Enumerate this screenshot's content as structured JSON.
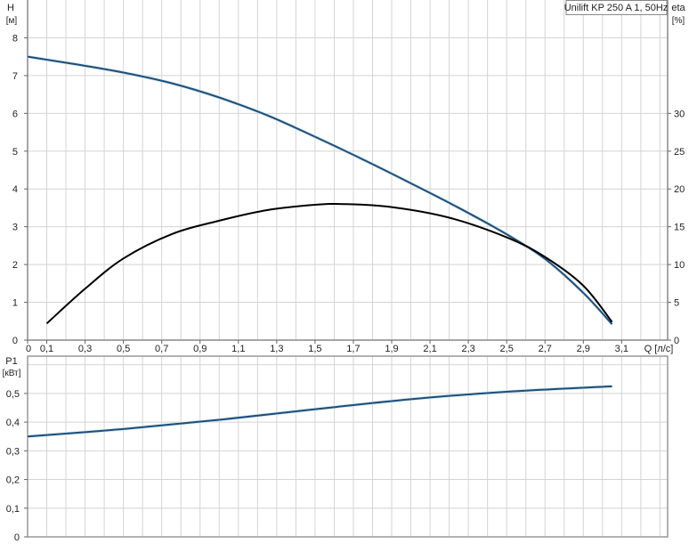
{
  "chart_data": [
    {
      "type": "line",
      "title": "Unilift KP 250 A 1, 50Hz",
      "xlabel": "Q [л/с]",
      "ylabel": "H",
      "ylabel_unit": "[м]",
      "y2label": "eta",
      "y2label_unit": "[%]",
      "xlim": [
        0,
        3.34
      ],
      "ylim": [
        0,
        9
      ],
      "y2lim": [
        0,
        45
      ],
      "x_ticks": [
        "0",
        "0,1",
        "0,3",
        "0,5",
        "0,7",
        "0,9",
        "1,1",
        "1,3",
        "1,5",
        "1,7",
        "1,9",
        "2,1",
        "2,3",
        "2,5",
        "2,7",
        "2,9",
        "3,1"
      ],
      "y_ticks": [
        "0",
        "1",
        "2",
        "3",
        "4",
        "5",
        "6",
        "7",
        "8"
      ],
      "y2_ticks": [
        "0",
        "5",
        "10",
        "15",
        "20",
        "25",
        "30"
      ],
      "grid": true,
      "series": [
        {
          "name": "H",
          "axis": "left",
          "color": "#1f4e79",
          "x": [
            0,
            0.25,
            0.5,
            0.75,
            1.0,
            1.25,
            1.5,
            1.75,
            2.0,
            2.25,
            2.5,
            2.7,
            2.9,
            3.05
          ],
          "y": [
            7.5,
            7.3,
            7.08,
            6.8,
            6.42,
            5.95,
            5.38,
            4.78,
            4.15,
            3.5,
            2.8,
            2.15,
            1.25,
            0.42
          ]
        },
        {
          "name": "eta",
          "axis": "right",
          "color": "#000000",
          "x": [
            0.1,
            0.3,
            0.5,
            0.75,
            1.0,
            1.25,
            1.5,
            1.65,
            1.9,
            2.2,
            2.5,
            2.7,
            2.9,
            3.05
          ],
          "y": [
            2.2,
            6.8,
            10.8,
            14.0,
            15.8,
            17.2,
            17.9,
            18.0,
            17.6,
            16.2,
            13.6,
            11.0,
            7.2,
            2.4
          ]
        }
      ]
    },
    {
      "type": "line",
      "xlabel": "",
      "ylabel": "P1",
      "ylabel_unit": "[кВт]",
      "xlim": [
        0,
        3.34
      ],
      "ylim": [
        0,
        0.63
      ],
      "y_ticks": [
        "0",
        "0,1",
        "0,2",
        "0,3",
        "0,4",
        "0,5"
      ],
      "grid": true,
      "series": [
        {
          "name": "P1",
          "color": "#1f4e79",
          "x": [
            0,
            0.5,
            1.0,
            1.5,
            2.0,
            2.5,
            3.05
          ],
          "y": [
            0.35,
            0.376,
            0.408,
            0.445,
            0.48,
            0.506,
            0.525
          ]
        }
      ]
    }
  ]
}
